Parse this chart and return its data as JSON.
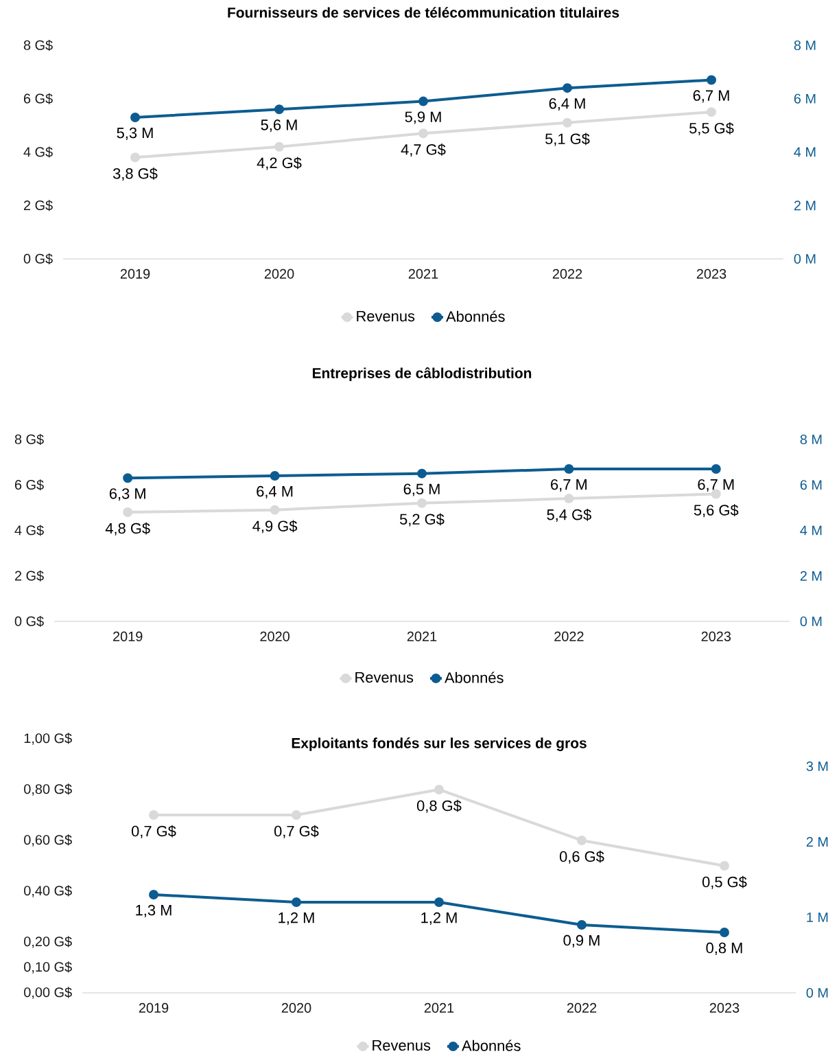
{
  "chart_data": [
    {
      "type": "line",
      "title": "Fournisseurs de services de télécommunication titulaires",
      "categories": [
        "2019",
        "2020",
        "2021",
        "2022",
        "2023"
      ],
      "ylim": [
        0,
        8
      ],
      "yticks": [
        {
          "value": 0,
          "label": "0 G$"
        },
        {
          "value": 2,
          "label": "2 G$"
        },
        {
          "value": 4,
          "label": "4 G$"
        },
        {
          "value": 6,
          "label": "6 G$"
        },
        {
          "value": 8,
          "label": "8 G$"
        }
      ],
      "y2lim": [
        0,
        8
      ],
      "y2ticks": [
        {
          "value": 0,
          "label": "0 M"
        },
        {
          "value": 2,
          "label": "2 M"
        },
        {
          "value": 4,
          "label": "4 M"
        },
        {
          "value": 6,
          "label": "6 M"
        },
        {
          "value": 8,
          "label": "8 M"
        }
      ],
      "legend": "bottom",
      "marker": "circle",
      "series": [
        {
          "name": "Revenus",
          "color": "#d9d9d9",
          "values": [
            3.8,
            4.2,
            4.7,
            5.1,
            5.5
          ],
          "value_labels": [
            "3,8 G$",
            "4,2 G$",
            "4,7 G$",
            "5,1 G$",
            "5,5 G$"
          ]
        },
        {
          "name": "Abonnés",
          "color": "#0d5c91",
          "axis": "y2",
          "values": [
            5.3,
            5.6,
            5.9,
            6.4,
            6.7
          ],
          "value_labels": [
            "5,3 M",
            "5,6 M",
            "5,9 M",
            "6,4 M",
            "6,7 M"
          ]
        }
      ]
    },
    {
      "type": "line",
      "title": "Entreprises de câblodistribution",
      "categories": [
        "2019",
        "2020",
        "2021",
        "2022",
        "2023"
      ],
      "ylim": [
        0,
        8
      ],
      "yticks": [
        {
          "value": 0,
          "label": "0 G$"
        },
        {
          "value": 2,
          "label": "2 G$"
        },
        {
          "value": 4,
          "label": "4 G$"
        },
        {
          "value": 6,
          "label": "6 G$"
        },
        {
          "value": 8,
          "label": "8 G$"
        }
      ],
      "y2lim": [
        0,
        8
      ],
      "y2ticks": [
        {
          "value": 0,
          "label": "0 M"
        },
        {
          "value": 2,
          "label": "2 M"
        },
        {
          "value": 4,
          "label": "4 M"
        },
        {
          "value": 6,
          "label": "6 M"
        },
        {
          "value": 8,
          "label": "8 M"
        }
      ],
      "legend": "bottom",
      "marker": "circle",
      "series": [
        {
          "name": "Revenus",
          "color": "#d9d9d9",
          "values": [
            4.8,
            4.9,
            5.2,
            5.4,
            5.6
          ],
          "value_labels": [
            "4,8 G$",
            "4,9 G$",
            "5,2 G$",
            "5,4 G$",
            "5,6 G$"
          ]
        },
        {
          "name": "Abonnés",
          "color": "#0d5c91",
          "axis": "y2",
          "values": [
            6.3,
            6.4,
            6.5,
            6.7,
            6.7
          ],
          "value_labels": [
            "6,3 M",
            "6,4 M",
            "6,5 M",
            "6,7 M",
            "6,7 M"
          ]
        }
      ]
    },
    {
      "type": "line",
      "title": "Exploitants fondés sur les services de gros",
      "categories": [
        "2019",
        "2020",
        "2021",
        "2022",
        "2023"
      ],
      "ylim": [
        0,
        1
      ],
      "yticks": [
        {
          "value": 0,
          "label": "0,00 G$"
        },
        {
          "value": 0.1,
          "label": "0,10 G$"
        },
        {
          "value": 0.2,
          "label": "0,20 G$"
        },
        {
          "value": 0.4,
          "label": "0,40 G$"
        },
        {
          "value": 0.6,
          "label": "0,60 G$"
        },
        {
          "value": 0.8,
          "label": "0,80 G$"
        },
        {
          "value": 1,
          "label": "1,00 G$"
        }
      ],
      "y2lim": [
        0,
        3
      ],
      "y2ticks": [
        {
          "value": 0,
          "label": "0 M"
        },
        {
          "value": 1,
          "label": "1 M"
        },
        {
          "value": 2,
          "label": "2 M"
        },
        {
          "value": 3,
          "label": "3 M"
        }
      ],
      "legend": "bottom",
      "marker": "circle",
      "series": [
        {
          "name": "Revenus",
          "color": "#d9d9d9",
          "values": [
            0.7,
            0.7,
            0.8,
            0.6,
            0.5
          ],
          "value_labels": [
            "0,7 G$",
            "0,7 G$",
            "0,8 G$",
            "0,6 G$",
            "0,5 G$"
          ]
        },
        {
          "name": "Abonnés",
          "color": "#0d5c91",
          "axis": "y2",
          "values": [
            1.3,
            1.2,
            1.2,
            0.9,
            0.8
          ],
          "value_labels": [
            "1,3 M",
            "1,2 M",
            "1,2 M",
            "0,9 M",
            "0,8 M"
          ]
        }
      ]
    }
  ]
}
